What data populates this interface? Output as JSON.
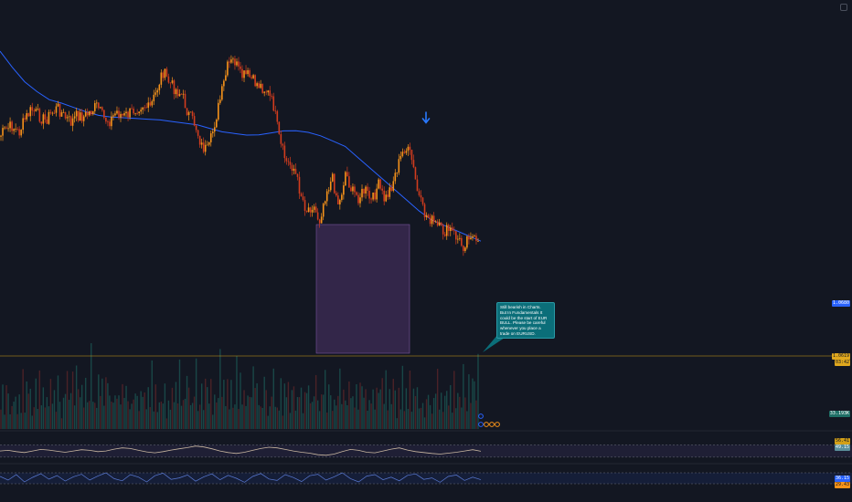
{
  "colors": {
    "background": "#131722",
    "candle": "#f7931a",
    "candle_dark": "#d23c1e",
    "moving_average": "#2962ff",
    "range_box": "#5b3a7a",
    "volume_up": "#1f6f66",
    "volume_down": "#7a2b2b",
    "rsi_line": "#c9b7a0",
    "stoch_line": "#5b7bd5",
    "callout": "#0b6e79",
    "arrow": "#2979ff",
    "horizontal_line": "#d4a017"
  },
  "icons": {
    "marker": "arrow-down-icon",
    "window": "settings-square-icon"
  },
  "callout": {
    "text": "Still bearish in Charts.\nBut In Fundamentals It could be the start of EUR BULL. Please be careful whenever you place a trade on EURUSD."
  },
  "price_scale": {
    "ma_label": "1.0680",
    "last_price_label": "1.0619",
    "last_price_sub": "03:42",
    "volume_label": "33.193K",
    "rsi_labels": [
      "56.41",
      "49.15"
    ],
    "stoch_labels": [
      "36.15",
      "29.43"
    ]
  },
  "chart_data": {
    "type": "line",
    "title": "",
    "main": {
      "price_series_shape": [
        40,
        48,
        52,
        44,
        60,
        70,
        64,
        58,
        66,
        72,
        62,
        56,
        64,
        62,
        68,
        74,
        60,
        58,
        68,
        62,
        66,
        72,
        76,
        70,
        88,
        112,
        100,
        92,
        86,
        64,
        54,
        30,
        24,
        56,
        86,
        118,
        124,
        106,
        108,
        100,
        96,
        90,
        74,
        32,
        12,
        8,
        -18,
        -40,
        -34,
        -52,
        -20,
        -6,
        -36,
        2,
        -20,
        -26,
        -18,
        -32,
        -12,
        -30,
        -14,
        8,
        28,
        20,
        -20,
        -44,
        -50,
        -58,
        -64,
        -62,
        -70,
        -80,
        -64,
        -78
      ],
      "moving_average_shape": [
        134,
        118,
        104,
        95,
        88,
        86,
        83,
        80,
        78,
        78,
        79,
        80,
        81,
        82,
        82,
        82,
        82,
        80,
        78,
        78,
        78,
        80,
        84,
        88,
        90,
        90,
        88,
        84,
        80,
        70,
        60,
        50,
        40,
        30,
        20,
        12,
        8,
        4,
        0,
        -4
      ],
      "range_box": {
        "x_start": 0.45,
        "x_end": 0.58,
        "top": 1.076,
        "bottom": 1.0619
      },
      "horizontal_level": 1.0619
    },
    "volume": {
      "values": [
        18,
        34,
        22,
        41,
        29,
        14,
        38,
        26,
        47,
        19,
        31,
        24,
        52,
        17,
        36,
        28,
        44,
        21,
        33,
        39,
        16,
        48,
        27,
        35,
        23,
        42,
        30,
        55,
        20,
        37,
        25,
        46,
        32,
        18,
        40,
        28,
        61,
        24,
        35,
        44,
        19,
        50,
        33,
        27,
        58,
        22,
        38,
        45,
        30,
        66,
        25,
        41,
        36,
        53,
        28,
        47,
        32,
        39,
        60,
        26,
        43,
        35,
        48,
        31,
        57,
        29,
        40,
        52,
        34,
        45
      ],
      "last_value": "33.193K"
    },
    "rsi": {
      "values": [
        50,
        52,
        48,
        45,
        50,
        55,
        53,
        49,
        46,
        50,
        54,
        52,
        48,
        50,
        56,
        60,
        58,
        52,
        47,
        44,
        48,
        53,
        57,
        61,
        66,
        63,
        57,
        50,
        45,
        42,
        46,
        52,
        58,
        62,
        60,
        55,
        50,
        46,
        43,
        38,
        36,
        40,
        48,
        55,
        52,
        46,
        44,
        50,
        56,
        60,
        53,
        48,
        45,
        42,
        40,
        43,
        46,
        50,
        54,
        49
      ],
      "levels": [
        70,
        30
      ],
      "labels": [
        "56.41",
        "49.15"
      ]
    },
    "stochastic": {
      "values": [
        60,
        40,
        70,
        30,
        55,
        75,
        45,
        65,
        35,
        58,
        72,
        40,
        62,
        80,
        48,
        36,
        70,
        56,
        30,
        64,
        78,
        44,
        52,
        68,
        34,
        58,
        74,
        42,
        66,
        50,
        28,
        60,
        76,
        46,
        38,
        70,
        54,
        32,
        64,
        72,
        40,
        58,
        80,
        48,
        30,
        62,
        70,
        42,
        56,
        36,
        66,
        74,
        44,
        52,
        28,
        60,
        68,
        38,
        56,
        42
      ],
      "levels": [
        80,
        20
      ],
      "labels": [
        "36.15",
        "29.43"
      ]
    }
  }
}
